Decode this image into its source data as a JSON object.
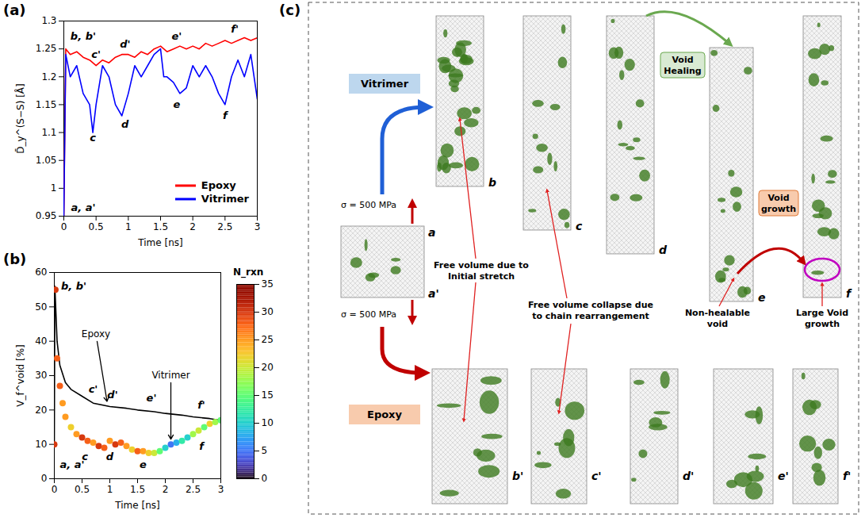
{
  "chart_data": [
    {
      "panel_label": "(a)",
      "type": "line",
      "x_label": "Time [ns]",
      "y_label": "D̄_y^(S−S) [Å]",
      "xlim": [
        0,
        3
      ],
      "xticks": [
        0,
        0.5,
        1,
        1.5,
        2,
        2.5,
        3
      ],
      "ylim": [
        0.95,
        1.3
      ],
      "yticks": [
        0.95,
        1,
        1.05,
        1.1,
        1.15,
        1.2,
        1.25,
        1.3
      ],
      "grid": false,
      "legend": "bottom-right",
      "x": [
        0,
        0.03,
        0.1,
        0.2,
        0.3,
        0.4,
        0.45,
        0.5,
        0.6,
        0.7,
        0.8,
        0.9,
        1.0,
        1.1,
        1.2,
        1.3,
        1.4,
        1.5,
        1.55,
        1.6,
        1.7,
        1.8,
        1.9,
        2.0,
        2.1,
        2.2,
        2.3,
        2.4,
        2.5,
        2.6,
        2.7,
        2.8,
        2.9,
        3.0
      ],
      "series": [
        {
          "name": "Epoxy",
          "color": "#ff0000",
          "values": [
            0.95,
            1.25,
            1.24,
            1.245,
            1.235,
            1.23,
            1.225,
            1.22,
            1.23,
            1.225,
            1.235,
            1.24,
            1.24,
            1.235,
            1.245,
            1.24,
            1.25,
            1.255,
            1.25,
            1.245,
            1.25,
            1.255,
            1.25,
            1.255,
            1.25,
            1.26,
            1.255,
            1.26,
            1.265,
            1.26,
            1.265,
            1.27,
            1.265,
            1.27
          ]
        },
        {
          "name": "Vitrimer",
          "color": "#0000ff",
          "values": [
            0.95,
            1.24,
            1.2,
            1.22,
            1.17,
            1.15,
            1.1,
            1.15,
            1.22,
            1.2,
            1.15,
            1.13,
            1.17,
            1.22,
            1.2,
            1.22,
            1.24,
            1.25,
            1.2,
            1.2,
            1.19,
            1.17,
            1.18,
            1.22,
            1.2,
            1.22,
            1.2,
            1.17,
            1.15,
            1.2,
            1.23,
            1.2,
            1.24,
            1.16
          ]
        }
      ],
      "annotations": [
        {
          "text": "a, a'",
          "x": 0.3,
          "y": 0.965
        },
        {
          "text": "b, b'",
          "x": 0.3,
          "y": 1.272
        },
        {
          "text": "c'",
          "x": 0.5,
          "y": 1.24
        },
        {
          "text": "d'",
          "x": 0.95,
          "y": 1.258
        },
        {
          "text": "e'",
          "x": 1.75,
          "y": 1.272
        },
        {
          "text": "f'",
          "x": 2.65,
          "y": 1.285
        },
        {
          "text": "c",
          "x": 0.45,
          "y": 1.09
        },
        {
          "text": "d",
          "x": 0.95,
          "y": 1.115
        },
        {
          "text": "e",
          "x": 1.75,
          "y": 1.15
        },
        {
          "text": "f",
          "x": 2.5,
          "y": 1.13
        }
      ]
    },
    {
      "panel_label": "(b)",
      "type": "line",
      "x_label": "Time [ns]",
      "y_label": "V_f^void [%]",
      "xlim": [
        0,
        3
      ],
      "xticks": [
        0,
        0.5,
        1,
        1.5,
        2,
        2.5,
        3
      ],
      "ylim": [
        0,
        60
      ],
      "yticks": [
        0,
        10,
        20,
        30,
        40,
        50,
        60
      ],
      "grid": false,
      "series": [
        {
          "name": "Epoxy",
          "type": "line",
          "color": "#000000",
          "x": [
            0,
            0.01,
            0.05,
            0.1,
            0.2,
            0.3,
            0.5,
            0.7,
            1.0,
            1.3,
            1.5,
            1.8,
            2.0,
            2.3,
            2.5,
            2.8,
            3.0
          ],
          "values": [
            10,
            56,
            40,
            33,
            28,
            26,
            24,
            22,
            21,
            20.5,
            20,
            19.5,
            19,
            18.5,
            18,
            17.5,
            17
          ]
        },
        {
          "name": "Vitrimer",
          "type": "scatter",
          "marker": "circle",
          "x": [
            0,
            0.02,
            0.05,
            0.1,
            0.15,
            0.2,
            0.3,
            0.4,
            0.5,
            0.6,
            0.7,
            0.8,
            0.9,
            1.0,
            1.1,
            1.2,
            1.3,
            1.4,
            1.5,
            1.6,
            1.7,
            1.8,
            1.9,
            2.0,
            2.1,
            2.2,
            2.3,
            2.4,
            2.5,
            2.6,
            2.7,
            2.8,
            2.9,
            3.0
          ],
          "values": [
            10,
            55,
            35,
            27,
            22,
            18,
            15,
            13,
            12,
            11,
            10.5,
            9.5,
            9,
            11,
            10,
            10.5,
            9.5,
            8.5,
            8,
            8,
            7.5,
            7.5,
            8,
            9,
            10,
            10.5,
            11,
            12,
            13,
            14,
            15,
            16,
            16.5,
            17
          ],
          "n_rxn": [
            30,
            30,
            28,
            28,
            25,
            25,
            22,
            25,
            30,
            28,
            25,
            30,
            28,
            25,
            30,
            28,
            25,
            22,
            28,
            25,
            22,
            20,
            15,
            10,
            5,
            8,
            12,
            10,
            18,
            20,
            15,
            22,
            18,
            15
          ]
        }
      ],
      "colorbar": {
        "label": "N_rxn",
        "range": [
          0,
          35
        ],
        "ticks": [
          0,
          5,
          10,
          15,
          20,
          25,
          30,
          35
        ]
      },
      "annotations": [
        {
          "text": "b, b'",
          "x": 0.35,
          "y": 56
        },
        {
          "text": "a, a'",
          "x": 0.32,
          "y": 4
        },
        {
          "text": "c'",
          "x": 0.7,
          "y": 26
        },
        {
          "text": "d'",
          "x": 1.05,
          "y": 24.5
        },
        {
          "text": "e'",
          "x": 1.75,
          "y": 23.5
        },
        {
          "text": "f'",
          "x": 2.65,
          "y": 21.5
        },
        {
          "text": "c",
          "x": 0.55,
          "y": 6.5
        },
        {
          "text": "d",
          "x": 1.0,
          "y": 6.5
        },
        {
          "text": "e",
          "x": 1.6,
          "y": 4
        },
        {
          "text": "f",
          "x": 2.65,
          "y": 9.5
        },
        {
          "text": "Epoxy",
          "x": 0.75,
          "y": 42,
          "target": [
            0.95,
            22.5
          ]
        },
        {
          "text": "Vitrimer",
          "x": 2.1,
          "y": 30,
          "target": [
            2.1,
            11.5
          ]
        }
      ]
    }
  ],
  "diagram": {
    "panel_label": "(c)",
    "groups": [
      {
        "label": "Vitrimer",
        "frames": [
          "b",
          "c",
          "d",
          "e",
          "f"
        ]
      },
      {
        "label": "Epoxy",
        "frames": [
          "b'",
          "c'",
          "d'",
          "e'",
          "f'"
        ]
      }
    ],
    "initial_frame": {
      "labels": [
        "a",
        "a'"
      ],
      "stress_labels": [
        "σ = 500 MPa",
        "σ = 500 MPa"
      ]
    },
    "annotations": {
      "free_volume_stretch": "Free volume due to Initial stretch",
      "free_volume_collapse": "Free volume collapse due to chain rearrangement",
      "void_healing": "Void Healing",
      "non_healable": "Non-healable void",
      "void_growth": "Void growth",
      "large_void_growth": "Large Void growth"
    }
  }
}
